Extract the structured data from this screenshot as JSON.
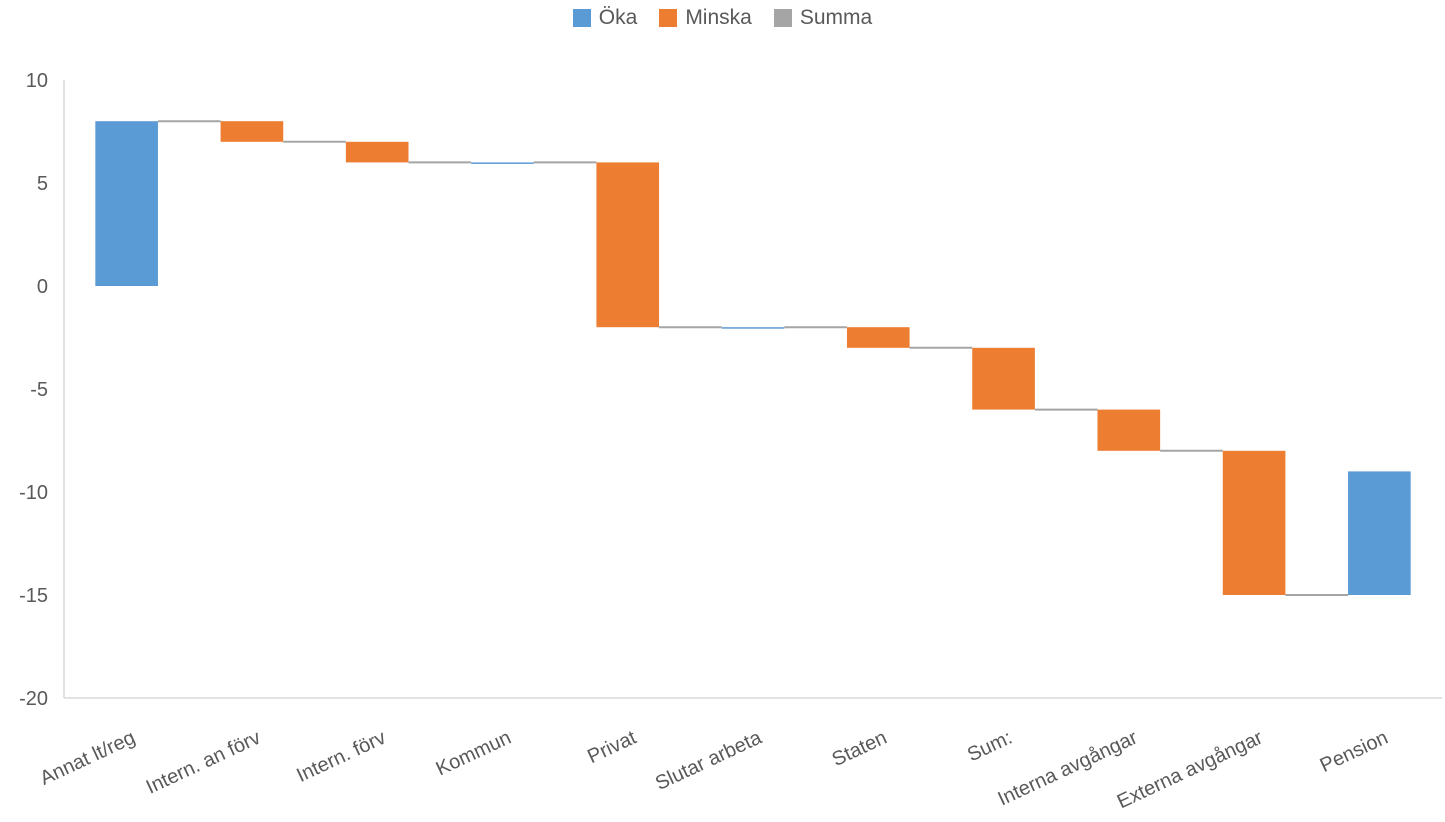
{
  "legend": {
    "items": [
      {
        "label": "Öka",
        "color": "#5B9BD5"
      },
      {
        "label": "Minska",
        "color": "#ED7D31"
      },
      {
        "label": "Summa",
        "color": "#A5A5A5"
      }
    ]
  },
  "chart_data": {
    "type": "bar",
    "subtype": "waterfall",
    "title": "",
    "xlabel": "",
    "ylabel": "",
    "ylim": [
      -20,
      10
    ],
    "yticks": [
      10,
      5,
      0,
      -5,
      -10,
      -15,
      -20
    ],
    "grid": false,
    "legend_position": "top-center",
    "categories": [
      "Annat lt/reg",
      "Intern. an förv",
      "Intern. förv",
      "Kommun",
      "Privat",
      "Slutar arbeta",
      "Staten",
      "Sum:",
      "Interna avgångar",
      "Externa avgångar",
      "Pension"
    ],
    "bars": [
      {
        "category": "Annat lt/reg",
        "kind": "Öka",
        "start": 0,
        "end": 8
      },
      {
        "category": "Intern. an förv",
        "kind": "Minska",
        "start": 8,
        "end": 7
      },
      {
        "category": "Intern. förv",
        "kind": "Minska",
        "start": 7,
        "end": 6
      },
      {
        "category": "Kommun",
        "kind": "Öka",
        "start": 6,
        "end": 6
      },
      {
        "category": "Privat",
        "kind": "Minska",
        "start": 6,
        "end": -2
      },
      {
        "category": "Slutar arbeta",
        "kind": "Öka",
        "start": -2,
        "end": -2
      },
      {
        "category": "Staten",
        "kind": "Minska",
        "start": -2,
        "end": -3
      },
      {
        "category": "Sum:",
        "kind": "Minska",
        "start": -3,
        "end": -6
      },
      {
        "category": "Interna avgångar",
        "kind": "Minska",
        "start": -6,
        "end": -8
      },
      {
        "category": "Externa avgångar",
        "kind": "Minska",
        "start": -8,
        "end": -15
      },
      {
        "category": "Pension",
        "kind": "Öka",
        "start": -15,
        "end": -9
      }
    ],
    "colors": {
      "Öka": "#5B9BD5",
      "Minska": "#ED7D31",
      "Summa": "#A5A5A5",
      "axis": "#D9D9D9",
      "connector": "#A5A5A5"
    }
  }
}
